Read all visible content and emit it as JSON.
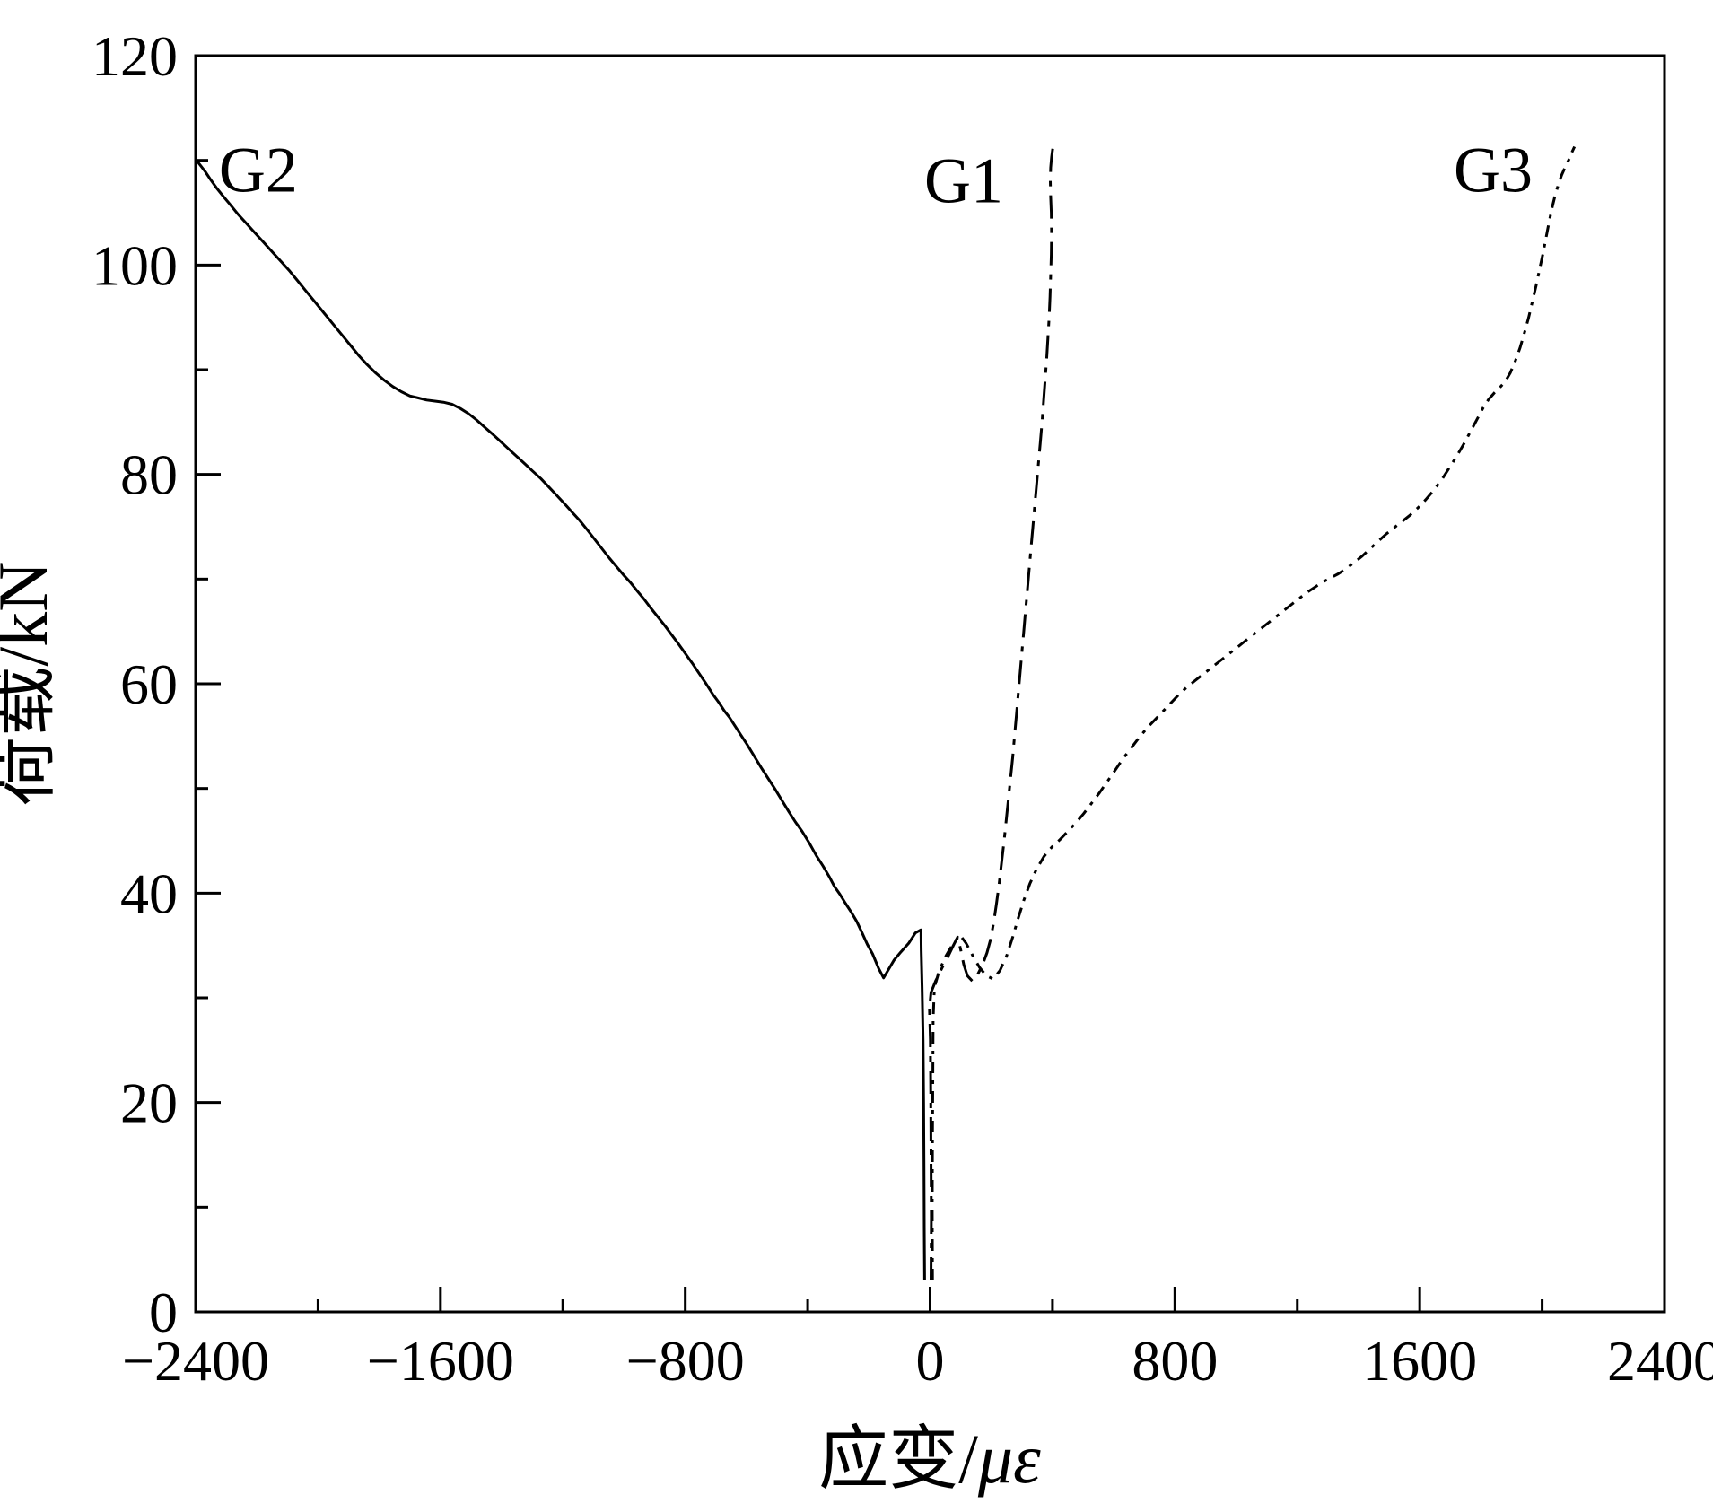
{
  "page": {
    "background": "#ffffff",
    "foreground": "#000000"
  },
  "chart_data": {
    "type": "line",
    "title": "",
    "xlabel": "应变/με",
    "xlabel_parts": {
      "prefix": "应变/",
      "symbol": "με"
    },
    "ylabel": "荷载/kN",
    "xlim": [
      -2400,
      2400
    ],
    "ylim": [
      0,
      120
    ],
    "x_ticks": [
      -2400,
      -1600,
      -800,
      0,
      800,
      1600,
      2400
    ],
    "x_tick_labels": [
      "−2400",
      "−1600",
      "−800",
      "0",
      "800",
      "1600",
      "2400"
    ],
    "x_minor_step": 400,
    "y_ticks": [
      0,
      20,
      40,
      60,
      80,
      100,
      120
    ],
    "y_tick_labels": [
      "0",
      "20",
      "40",
      "60",
      "80",
      "100",
      "120"
    ],
    "y_minor_step": 10,
    "grid": false,
    "legend_position": "none",
    "line_color": "#000000",
    "series": [
      {
        "name": "G2",
        "line_style": "solid",
        "color": "#000000",
        "points": [
          [
            -18,
            3
          ],
          [
            -19,
            8
          ],
          [
            -20,
            14
          ],
          [
            -21,
            20
          ],
          [
            -23,
            26
          ],
          [
            -26,
            31
          ],
          [
            -29,
            34.5
          ],
          [
            -30,
            36.5
          ],
          [
            -48,
            36.2
          ],
          [
            -70,
            35.2
          ],
          [
            -95,
            34.4
          ],
          [
            -118,
            33.6
          ],
          [
            -138,
            32.6
          ],
          [
            -152,
            31.9
          ],
          [
            -168,
            32.8
          ],
          [
            -188,
            34.2
          ],
          [
            -205,
            35.1
          ],
          [
            -222,
            36.2
          ],
          [
            -240,
            37.3
          ],
          [
            -258,
            38.2
          ],
          [
            -276,
            39
          ],
          [
            -295,
            39.9
          ],
          [
            -312,
            40.6
          ],
          [
            -330,
            41.6
          ],
          [
            -350,
            42.6
          ],
          [
            -372,
            43.6
          ],
          [
            -395,
            44.8
          ],
          [
            -418,
            45.9
          ],
          [
            -440,
            46.8
          ],
          [
            -462,
            47.8
          ],
          [
            -485,
            48.9
          ],
          [
            -508,
            50
          ],
          [
            -530,
            51
          ],
          [
            -552,
            52
          ],
          [
            -575,
            53.1
          ],
          [
            -598,
            54.2
          ],
          [
            -618,
            55.1
          ],
          [
            -638,
            56
          ],
          [
            -656,
            56.8
          ],
          [
            -672,
            57.4
          ],
          [
            -690,
            58.2
          ],
          [
            -710,
            59
          ],
          [
            -732,
            60
          ],
          [
            -755,
            61
          ],
          [
            -778,
            62
          ],
          [
            -800,
            62.9
          ],
          [
            -822,
            63.8
          ],
          [
            -845,
            64.7
          ],
          [
            -868,
            65.6
          ],
          [
            -890,
            66.4
          ],
          [
            -912,
            67.2
          ],
          [
            -935,
            68.1
          ],
          [
            -958,
            68.9
          ],
          [
            -980,
            69.7
          ],
          [
            -1002,
            70.4
          ],
          [
            -1025,
            71.2
          ],
          [
            -1048,
            72
          ],
          [
            -1072,
            72.9
          ],
          [
            -1096,
            73.8
          ],
          [
            -1120,
            74.7
          ],
          [
            -1145,
            75.6
          ],
          [
            -1170,
            76.4
          ],
          [
            -1195,
            77.2
          ],
          [
            -1220,
            78
          ],
          [
            -1246,
            78.8
          ],
          [
            -1272,
            79.6
          ],
          [
            -1298,
            80.3
          ],
          [
            -1324,
            81
          ],
          [
            -1350,
            81.7
          ],
          [
            -1376,
            82.4
          ],
          [
            -1402,
            83.1
          ],
          [
            -1428,
            83.8
          ],
          [
            -1455,
            84.5
          ],
          [
            -1482,
            85.2
          ],
          [
            -1508,
            85.8
          ],
          [
            -1535,
            86.3
          ],
          [
            -1562,
            86.7
          ],
          [
            -1590,
            86.9
          ],
          [
            -1618,
            87
          ],
          [
            -1645,
            87.1
          ],
          [
            -1672,
            87.3
          ],
          [
            -1700,
            87.5
          ],
          [
            -1728,
            87.9
          ],
          [
            -1756,
            88.4
          ],
          [
            -1784,
            89
          ],
          [
            -1812,
            89.7
          ],
          [
            -1840,
            90.5
          ],
          [
            -1868,
            91.4
          ],
          [
            -1896,
            92.4
          ],
          [
            -1924,
            93.4
          ],
          [
            -1952,
            94.4
          ],
          [
            -1980,
            95.4
          ],
          [
            -2008,
            96.4
          ],
          [
            -2036,
            97.4
          ],
          [
            -2064,
            98.4
          ],
          [
            -2092,
            99.4
          ],
          [
            -2120,
            100.3
          ],
          [
            -2148,
            101.2
          ],
          [
            -2176,
            102.1
          ],
          [
            -2204,
            103
          ],
          [
            -2232,
            103.9
          ],
          [
            -2260,
            104.8
          ],
          [
            -2285,
            105.7
          ],
          [
            -2308,
            106.5
          ],
          [
            -2330,
            107.3
          ],
          [
            -2350,
            108.1
          ],
          [
            -2368,
            108.9
          ],
          [
            -2384,
            109.5
          ],
          [
            -2400,
            110.1
          ]
        ]
      },
      {
        "name": "G1",
        "line_style": "dash-dot",
        "color": "#000000",
        "points": [
          [
            3,
            3
          ],
          [
            4,
            9
          ],
          [
            3,
            15
          ],
          [
            2,
            21
          ],
          [
            1,
            26
          ],
          [
            -2,
            29
          ],
          [
            3,
            30.5
          ],
          [
            18,
            31.6
          ],
          [
            38,
            32.8
          ],
          [
            58,
            33.9
          ],
          [
            76,
            35
          ],
          [
            90,
            35.8
          ],
          [
            100,
            34.6
          ],
          [
            110,
            33.2
          ],
          [
            122,
            32.1
          ],
          [
            138,
            31.6
          ],
          [
            155,
            32.2
          ],
          [
            172,
            33.2
          ],
          [
            186,
            34.3
          ],
          [
            198,
            35.6
          ],
          [
            208,
            37.2
          ],
          [
            217,
            39
          ],
          [
            226,
            41
          ],
          [
            234,
            43
          ],
          [
            242,
            45
          ],
          [
            249,
            47
          ],
          [
            256,
            49
          ],
          [
            263,
            51
          ],
          [
            270,
            53
          ],
          [
            276,
            55
          ],
          [
            282,
            57
          ],
          [
            288,
            59
          ],
          [
            294,
            61
          ],
          [
            300,
            63
          ],
          [
            306,
            65
          ],
          [
            312,
            67
          ],
          [
            318,
            69
          ],
          [
            324,
            71
          ],
          [
            330,
            73
          ],
          [
            336,
            75
          ],
          [
            342,
            77
          ],
          [
            348,
            79
          ],
          [
            354,
            81
          ],
          [
            360,
            83
          ],
          [
            366,
            85
          ],
          [
            371,
            87
          ],
          [
            376,
            89
          ],
          [
            381,
            91
          ],
          [
            385,
            93
          ],
          [
            389,
            95
          ],
          [
            392,
            97
          ],
          [
            394,
            99
          ],
          [
            396,
            101
          ],
          [
            397,
            103
          ],
          [
            396,
            105
          ],
          [
            394,
            106.5
          ],
          [
            393,
            108
          ],
          [
            394,
            109.3
          ],
          [
            397,
            110.3
          ],
          [
            401,
            111.2
          ]
        ]
      },
      {
        "name": "G3",
        "line_style": "short-dash-dot",
        "color": "#000000",
        "points": [
          [
            8,
            3
          ],
          [
            7,
            10
          ],
          [
            8,
            17
          ],
          [
            9,
            23
          ],
          [
            10,
            28
          ],
          [
            14,
            31
          ],
          [
            30,
            32.6
          ],
          [
            52,
            34
          ],
          [
            76,
            35.2
          ],
          [
            98,
            36
          ],
          [
            118,
            35.2
          ],
          [
            140,
            34
          ],
          [
            162,
            32.9
          ],
          [
            184,
            32.1
          ],
          [
            206,
            31.8
          ],
          [
            228,
            32.6
          ],
          [
            250,
            34
          ],
          [
            270,
            35.8
          ],
          [
            288,
            37.6
          ],
          [
            306,
            39.3
          ],
          [
            326,
            40.9
          ],
          [
            348,
            42.3
          ],
          [
            372,
            43.5
          ],
          [
            398,
            44.4
          ],
          [
            424,
            45.1
          ],
          [
            450,
            45.9
          ],
          [
            476,
            46.7
          ],
          [
            502,
            47.6
          ],
          [
            528,
            48.6
          ],
          [
            554,
            49.6
          ],
          [
            580,
            50.7
          ],
          [
            606,
            51.8
          ],
          [
            632,
            52.9
          ],
          [
            658,
            53.9
          ],
          [
            684,
            54.9
          ],
          [
            710,
            55.8
          ],
          [
            736,
            56.6
          ],
          [
            762,
            57.4
          ],
          [
            788,
            58.2
          ],
          [
            814,
            59
          ],
          [
            840,
            59.7
          ],
          [
            866,
            60.3
          ],
          [
            892,
            60.9
          ],
          [
            918,
            61.5
          ],
          [
            944,
            62.1
          ],
          [
            970,
            62.7
          ],
          [
            996,
            63.3
          ],
          [
            1022,
            63.9
          ],
          [
            1048,
            64.5
          ],
          [
            1074,
            65.1
          ],
          [
            1100,
            65.7
          ],
          [
            1126,
            66.3
          ],
          [
            1152,
            66.9
          ],
          [
            1178,
            67.5
          ],
          [
            1204,
            68.1
          ],
          [
            1230,
            68.7
          ],
          [
            1256,
            69.2
          ],
          [
            1282,
            69.7
          ],
          [
            1308,
            70.1
          ],
          [
            1334,
            70.5
          ],
          [
            1360,
            71
          ],
          [
            1386,
            71.6
          ],
          [
            1412,
            72.2
          ],
          [
            1438,
            72.9
          ],
          [
            1464,
            73.6
          ],
          [
            1490,
            74.3
          ],
          [
            1516,
            74.9
          ],
          [
            1542,
            75.5
          ],
          [
            1568,
            76.1
          ],
          [
            1594,
            76.8
          ],
          [
            1620,
            77.6
          ],
          [
            1646,
            78.5
          ],
          [
            1672,
            79.5
          ],
          [
            1696,
            80.6
          ],
          [
            1720,
            81.7
          ],
          [
            1744,
            82.9
          ],
          [
            1766,
            84.1
          ],
          [
            1788,
            85.3
          ],
          [
            1808,
            86.4
          ],
          [
            1826,
            87.2
          ],
          [
            1844,
            87.8
          ],
          [
            1862,
            88.3
          ],
          [
            1880,
            88.9
          ],
          [
            1896,
            89.7
          ],
          [
            1912,
            90.8
          ],
          [
            1928,
            92.1
          ],
          [
            1942,
            93.5
          ],
          [
            1956,
            95
          ],
          [
            1968,
            96.5
          ],
          [
            1980,
            98
          ],
          [
            1991,
            99.5
          ],
          [
            2002,
            101
          ],
          [
            2012,
            102.5
          ],
          [
            2022,
            104
          ],
          [
            2032,
            105.4
          ],
          [
            2042,
            106.6
          ],
          [
            2053,
            107.7
          ],
          [
            2064,
            108.6
          ],
          [
            2076,
            109.4
          ],
          [
            2088,
            110.1
          ],
          [
            2098,
            110.8
          ],
          [
            2106,
            111.3
          ]
        ]
      }
    ],
    "labels": [
      {
        "text": "G2",
        "x": -2195,
        "y": 107
      },
      {
        "text": "G1",
        "x": 110,
        "y": 106
      },
      {
        "text": "G3",
        "x": 1840,
        "y": 107
      }
    ]
  }
}
